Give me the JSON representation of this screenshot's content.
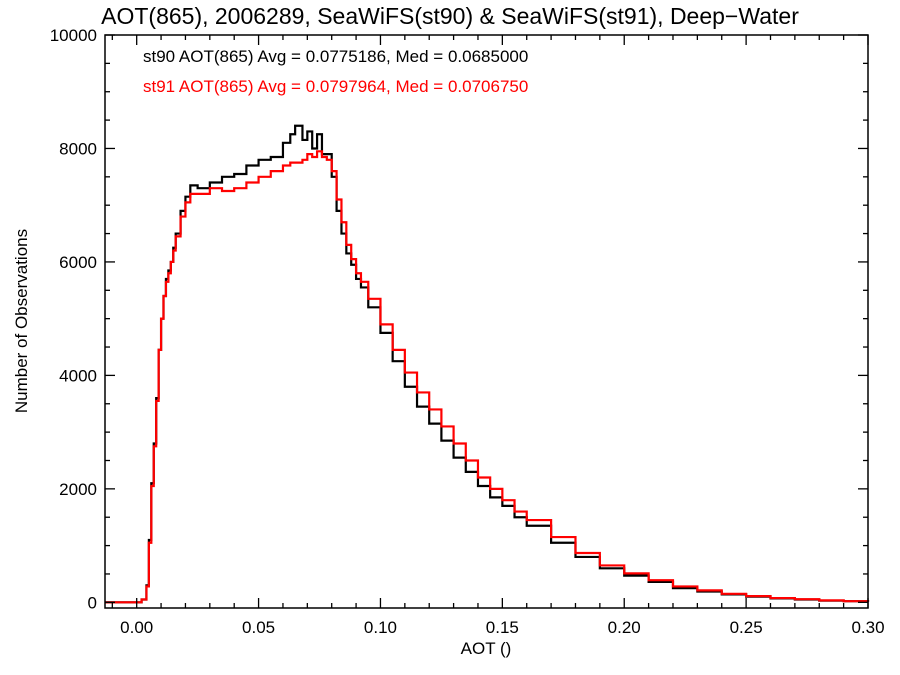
{
  "chart_data": {
    "type": "line",
    "style": "step-histogram",
    "title": "AOT(865), 2006289, SeaWiFS(st90) & SeaWiFS(st91), Deep−Water",
    "xlabel": "AOT ()",
    "ylabel": "Number of Observations",
    "xlim": [
      -0.013,
      0.3
    ],
    "ylim": [
      -100,
      10000
    ],
    "x_ticks": [
      0.0,
      0.05,
      0.1,
      0.15,
      0.2,
      0.25,
      0.3
    ],
    "x_tick_labels": [
      "0.00",
      "0.05",
      "0.10",
      "0.15",
      "0.20",
      "0.25",
      "0.30"
    ],
    "y_ticks": [
      0,
      2000,
      4000,
      6000,
      8000,
      10000
    ],
    "y_tick_labels": [
      "0",
      "2000",
      "4000",
      "6000",
      "8000",
      "10000"
    ],
    "grid": false,
    "legend_position": "top-left",
    "annotations": [
      {
        "text": "st90 AOT(865) Avg = 0.0775186, Med = 0.0685000",
        "color": "#000000"
      },
      {
        "text": "st91 AOT(865) Avg = 0.0797964, Med = 0.0706750",
        "color": "#ff0000"
      }
    ],
    "series": [
      {
        "name": "st90",
        "color": "#000000",
        "x": [
          -0.013,
          0.0,
          0.002,
          0.004,
          0.005,
          0.006,
          0.007,
          0.008,
          0.009,
          0.01,
          0.011,
          0.012,
          0.013,
          0.014,
          0.015,
          0.016,
          0.018,
          0.02,
          0.022,
          0.025,
          0.03,
          0.035,
          0.04,
          0.045,
          0.05,
          0.055,
          0.06,
          0.063,
          0.065,
          0.068,
          0.07,
          0.072,
          0.074,
          0.076,
          0.078,
          0.08,
          0.082,
          0.084,
          0.086,
          0.088,
          0.09,
          0.092,
          0.095,
          0.1,
          0.105,
          0.11,
          0.115,
          0.12,
          0.125,
          0.13,
          0.135,
          0.14,
          0.145,
          0.15,
          0.155,
          0.16,
          0.17,
          0.18,
          0.19,
          0.2,
          0.21,
          0.22,
          0.23,
          0.24,
          0.25,
          0.26,
          0.27,
          0.28,
          0.29,
          0.3
        ],
        "y": [
          0,
          0,
          50,
          300,
          1100,
          2100,
          2800,
          3600,
          4450,
          5000,
          5400,
          5700,
          5850,
          6000,
          6250,
          6500,
          6900,
          7150,
          7350,
          7300,
          7400,
          7500,
          7550,
          7700,
          7800,
          7850,
          8100,
          8250,
          8400,
          8150,
          8300,
          8000,
          8250,
          7900,
          7900,
          7500,
          6900,
          6500,
          6150,
          5950,
          5700,
          5550,
          5200,
          4750,
          4250,
          3800,
          3450,
          3150,
          2850,
          2550,
          2300,
          2050,
          1850,
          1700,
          1500,
          1350,
          1050,
          800,
          600,
          470,
          360,
          250,
          190,
          140,
          100,
          70,
          50,
          30,
          20,
          10
        ]
      },
      {
        "name": "st91",
        "color": "#ff0000",
        "x": [
          -0.013,
          0.0,
          0.002,
          0.004,
          0.005,
          0.006,
          0.007,
          0.008,
          0.009,
          0.01,
          0.011,
          0.012,
          0.013,
          0.014,
          0.015,
          0.016,
          0.018,
          0.02,
          0.022,
          0.025,
          0.03,
          0.035,
          0.04,
          0.045,
          0.05,
          0.055,
          0.06,
          0.063,
          0.065,
          0.068,
          0.07,
          0.072,
          0.074,
          0.076,
          0.078,
          0.08,
          0.082,
          0.084,
          0.086,
          0.088,
          0.09,
          0.092,
          0.095,
          0.1,
          0.105,
          0.11,
          0.115,
          0.12,
          0.125,
          0.13,
          0.135,
          0.14,
          0.145,
          0.15,
          0.155,
          0.16,
          0.17,
          0.18,
          0.19,
          0.2,
          0.21,
          0.22,
          0.23,
          0.24,
          0.25,
          0.26,
          0.27,
          0.28,
          0.29,
          0.3
        ],
        "y": [
          0,
          0,
          50,
          280,
          1050,
          2050,
          2750,
          3550,
          4450,
          5000,
          5400,
          5650,
          5800,
          6000,
          6200,
          6450,
          6800,
          7050,
          7200,
          7200,
          7300,
          7250,
          7300,
          7400,
          7500,
          7600,
          7700,
          7750,
          7750,
          7800,
          7900,
          7850,
          7950,
          7850,
          7800,
          7600,
          7100,
          6700,
          6300,
          6050,
          5800,
          5650,
          5350,
          4900,
          4450,
          4050,
          3700,
          3400,
          3100,
          2800,
          2500,
          2200,
          2000,
          1800,
          1600,
          1450,
          1150,
          870,
          650,
          510,
          390,
          280,
          210,
          150,
          110,
          75,
          55,
          35,
          20,
          10
        ]
      }
    ]
  }
}
